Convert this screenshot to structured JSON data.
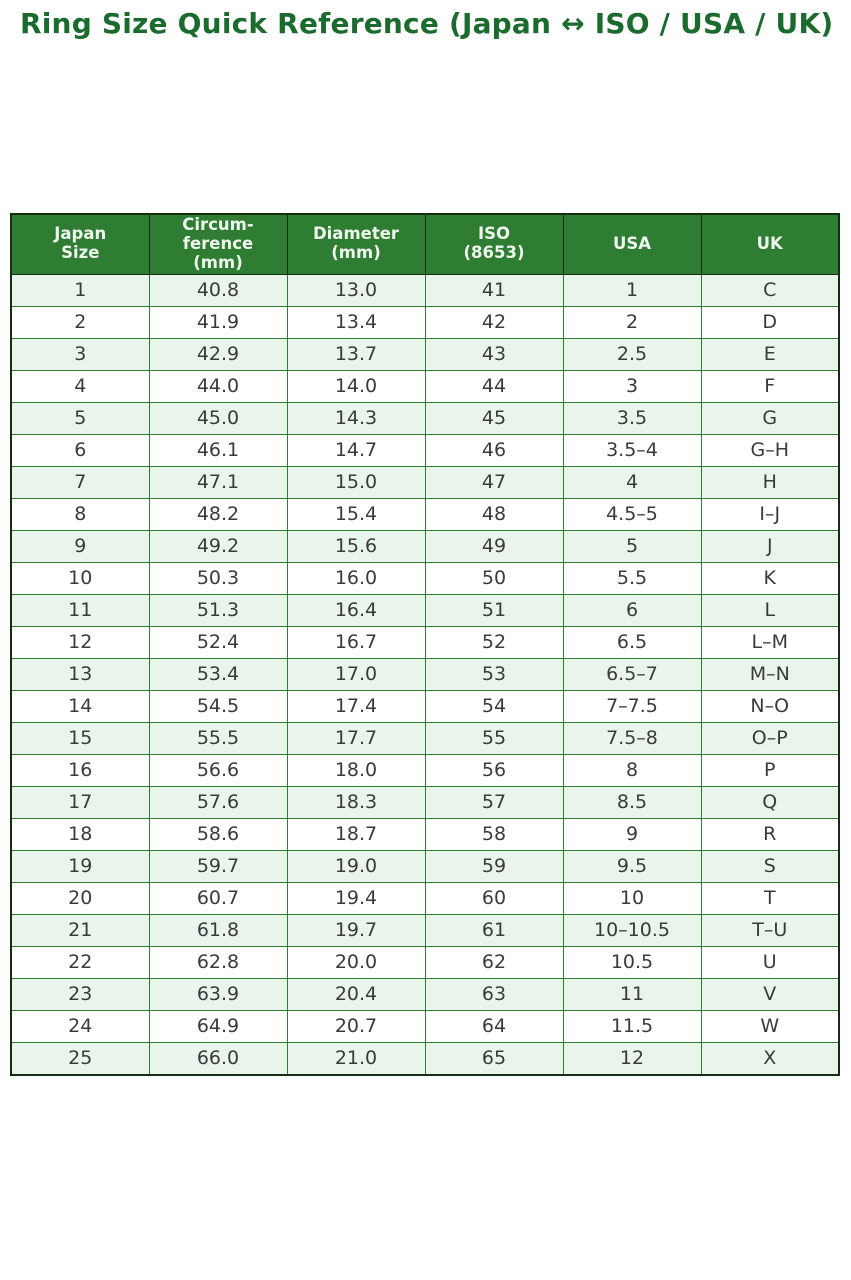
{
  "title": "Ring Size Quick Reference (Japan ↔ ISO / USA / UK)",
  "colors": {
    "title_green": "#1c6b2e",
    "header_bg": "#2e7d32",
    "header_text": "#eef6ee",
    "row_alt_bg": "#e9f5ea",
    "row_bg": "#ffffff",
    "cell_border": "#2e7d32",
    "outer_border": "#152e11",
    "body_text": "#3a3a3a"
  },
  "chart_data": {
    "type": "table",
    "title": "Ring Size Quick Reference (Japan ↔ ISO / USA / UK)",
    "columns": [
      "Japan Size",
      "Circumference (mm)",
      "Diameter (mm)",
      "ISO (8653)",
      "USA",
      "UK"
    ],
    "column_keys": [
      "japan-size",
      "circumference-mm",
      "diameter-mm",
      "iso-8653",
      "usa",
      "uk"
    ],
    "header_display": [
      "Japan\nSize",
      "Circum-\nference\n(mm)",
      "Diameter\n(mm)",
      "ISO\n(8653)",
      "USA",
      "UK"
    ],
    "rows": [
      [
        "1",
        "40.8",
        "13.0",
        "41",
        "1",
        "C"
      ],
      [
        "2",
        "41.9",
        "13.4",
        "42",
        "2",
        "D"
      ],
      [
        "3",
        "42.9",
        "13.7",
        "43",
        "2.5",
        "E"
      ],
      [
        "4",
        "44.0",
        "14.0",
        "44",
        "3",
        "F"
      ],
      [
        "5",
        "45.0",
        "14.3",
        "45",
        "3.5",
        "G"
      ],
      [
        "6",
        "46.1",
        "14.7",
        "46",
        "3.5–4",
        "G–H"
      ],
      [
        "7",
        "47.1",
        "15.0",
        "47",
        "4",
        "H"
      ],
      [
        "8",
        "48.2",
        "15.4",
        "48",
        "4.5–5",
        "I–J"
      ],
      [
        "9",
        "49.2",
        "15.6",
        "49",
        "5",
        "J"
      ],
      [
        "10",
        "50.3",
        "16.0",
        "50",
        "5.5",
        "K"
      ],
      [
        "11",
        "51.3",
        "16.4",
        "51",
        "6",
        "L"
      ],
      [
        "12",
        "52.4",
        "16.7",
        "52",
        "6.5",
        "L–M"
      ],
      [
        "13",
        "53.4",
        "17.0",
        "53",
        "6.5–7",
        "M–N"
      ],
      [
        "14",
        "54.5",
        "17.4",
        "54",
        "7–7.5",
        "N–O"
      ],
      [
        "15",
        "55.5",
        "17.7",
        "55",
        "7.5–8",
        "O–P"
      ],
      [
        "16",
        "56.6",
        "18.0",
        "56",
        "8",
        "P"
      ],
      [
        "17",
        "57.6",
        "18.3",
        "57",
        "8.5",
        "Q"
      ],
      [
        "18",
        "58.6",
        "18.7",
        "58",
        "9",
        "R"
      ],
      [
        "19",
        "59.7",
        "19.0",
        "59",
        "9.5",
        "S"
      ],
      [
        "20",
        "60.7",
        "19.4",
        "60",
        "10",
        "T"
      ],
      [
        "21",
        "61.8",
        "19.7",
        "61",
        "10–10.5",
        "T–U"
      ],
      [
        "22",
        "62.8",
        "20.0",
        "62",
        "10.5",
        "U"
      ],
      [
        "23",
        "63.9",
        "20.4",
        "63",
        "11",
        "V"
      ],
      [
        "24",
        "64.9",
        "20.7",
        "64",
        "11.5",
        "W"
      ],
      [
        "25",
        "66.0",
        "21.0",
        "65",
        "12",
        "X"
      ]
    ]
  }
}
